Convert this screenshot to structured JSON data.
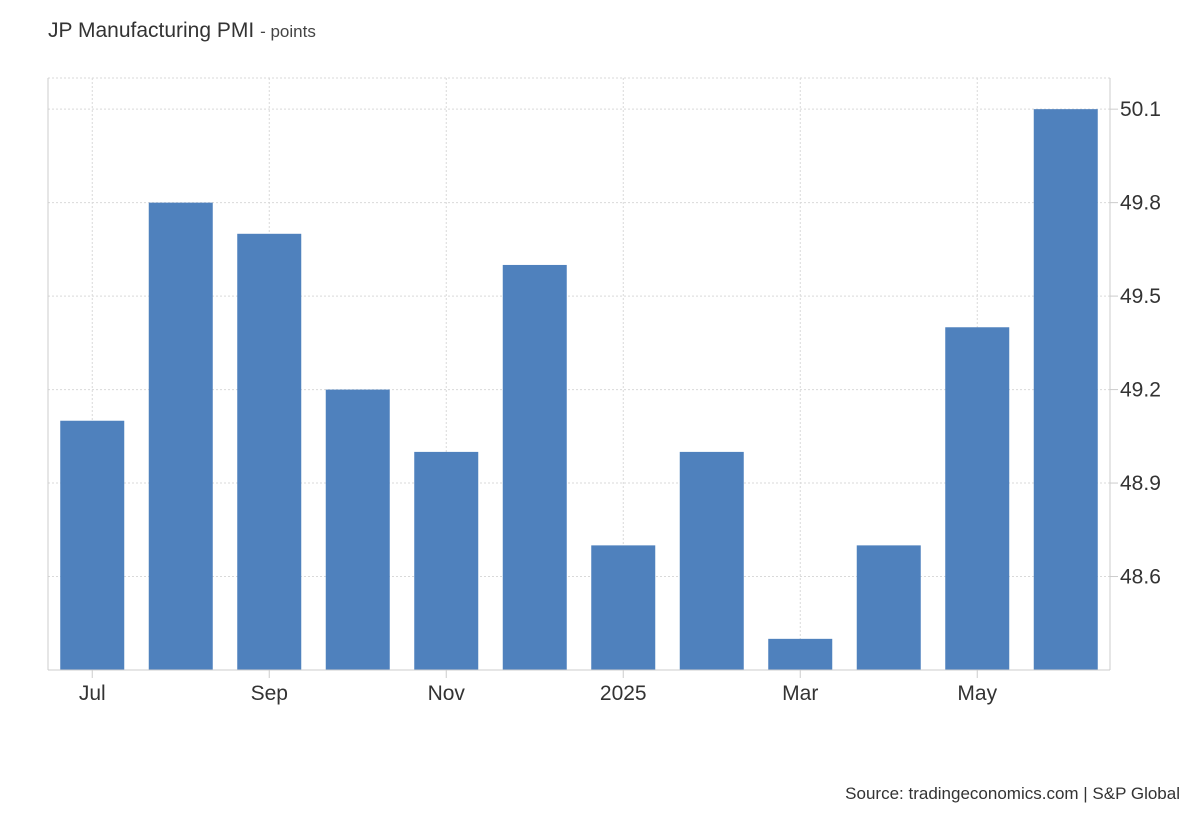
{
  "title": "JP Manufacturing PMI",
  "subtitle": "points",
  "source": "Source: tradingeconomics.com | S&P Global",
  "colors": {
    "bar": "#4f81bd",
    "grid": "#d9d9d9",
    "axis": "#cccccc"
  },
  "chart_data": {
    "type": "bar",
    "categories": [
      "2024-07",
      "2024-08",
      "2024-09",
      "2024-10",
      "2024-11",
      "2024-12",
      "2025-01",
      "2025-02",
      "2025-03",
      "2025-04",
      "2025-05",
      "2025-06"
    ],
    "values": [
      49.1,
      49.8,
      49.7,
      49.2,
      49.0,
      49.6,
      48.7,
      49.0,
      48.4,
      48.7,
      49.4,
      50.1
    ],
    "x_tick_labels": [
      "Jul",
      "",
      "Sep",
      "",
      "Nov",
      "",
      "2025",
      "",
      "Mar",
      "",
      "May",
      ""
    ],
    "y_ticks": [
      48.6,
      48.9,
      49.2,
      49.5,
      49.8,
      50.1
    ],
    "y_tick_labels": [
      "48.6",
      "48.9",
      "49.2",
      "49.5",
      "49.8",
      "50.1"
    ],
    "ylim": [
      48.3,
      50.2
    ],
    "grid": true,
    "y_axis_side": "right"
  }
}
